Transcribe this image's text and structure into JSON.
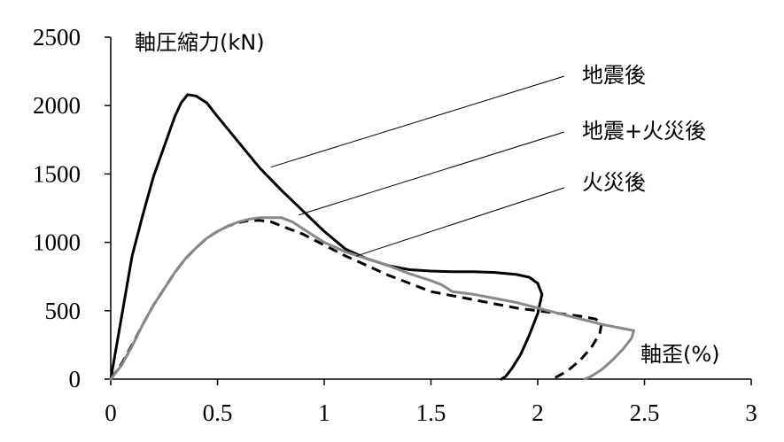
{
  "chart_data": {
    "type": "line",
    "title": "",
    "ylabel": "軸圧縮力(kN)",
    "xlabel": "軸歪(%)",
    "xlim": [
      0,
      3
    ],
    "ylim": [
      0,
      2500
    ],
    "xticks": [
      "0",
      "0.5",
      "1",
      "1.5",
      "2",
      "2.5",
      "3"
    ],
    "yticks": [
      "0",
      "500",
      "1000",
      "1500",
      "2000",
      "2500"
    ],
    "grid": false,
    "legend": "annotation leader lines, upper right",
    "series": [
      {
        "name": "地震後",
        "color": "#000000",
        "style": "solid",
        "points": [
          [
            0,
            0
          ],
          [
            0.05,
            450
          ],
          [
            0.1,
            900
          ],
          [
            0.15,
            1200
          ],
          [
            0.2,
            1480
          ],
          [
            0.25,
            1700
          ],
          [
            0.3,
            1920
          ],
          [
            0.33,
            2020
          ],
          [
            0.36,
            2080
          ],
          [
            0.4,
            2070
          ],
          [
            0.45,
            2020
          ],
          [
            0.5,
            1920
          ],
          [
            0.6,
            1730
          ],
          [
            0.7,
            1540
          ],
          [
            0.8,
            1380
          ],
          [
            0.9,
            1230
          ],
          [
            1.0,
            1080
          ],
          [
            1.1,
            950
          ],
          [
            1.2,
            880
          ],
          [
            1.3,
            830
          ],
          [
            1.4,
            800
          ],
          [
            1.5,
            790
          ],
          [
            1.6,
            785
          ],
          [
            1.7,
            785
          ],
          [
            1.8,
            780
          ],
          [
            1.9,
            765
          ],
          [
            1.96,
            745
          ],
          [
            2.0,
            700
          ],
          [
            2.02,
            620
          ],
          [
            2.0,
            480
          ],
          [
            1.96,
            320
          ],
          [
            1.92,
            180
          ],
          [
            1.88,
            80
          ],
          [
            1.85,
            20
          ],
          [
            1.83,
            0
          ]
        ]
      },
      {
        "name": "地震+火災後",
        "color": "#000000",
        "style": "dashed",
        "points": [
          [
            0,
            0
          ],
          [
            0.05,
            110
          ],
          [
            0.1,
            250
          ],
          [
            0.15,
            400
          ],
          [
            0.2,
            540
          ],
          [
            0.25,
            660
          ],
          [
            0.3,
            780
          ],
          [
            0.35,
            880
          ],
          [
            0.4,
            960
          ],
          [
            0.45,
            1030
          ],
          [
            0.5,
            1080
          ],
          [
            0.55,
            1120
          ],
          [
            0.6,
            1145
          ],
          [
            0.65,
            1160
          ],
          [
            0.7,
            1160
          ],
          [
            0.75,
            1150
          ],
          [
            0.8,
            1120
          ],
          [
            0.9,
            1060
          ],
          [
            1.0,
            980
          ],
          [
            1.1,
            900
          ],
          [
            1.2,
            830
          ],
          [
            1.3,
            760
          ],
          [
            1.4,
            700
          ],
          [
            1.5,
            640
          ],
          [
            1.6,
            610
          ],
          [
            1.7,
            580
          ],
          [
            1.8,
            550
          ],
          [
            1.9,
            520
          ],
          [
            2.0,
            500
          ],
          [
            2.1,
            480
          ],
          [
            2.2,
            460
          ],
          [
            2.27,
            440
          ],
          [
            2.3,
            410
          ],
          [
            2.29,
            330
          ],
          [
            2.25,
            230
          ],
          [
            2.2,
            140
          ],
          [
            2.14,
            60
          ],
          [
            2.07,
            0
          ]
        ]
      },
      {
        "name": "火災後",
        "color": "#888888",
        "style": "solid",
        "points": [
          [
            0,
            0
          ],
          [
            0.05,
            100
          ],
          [
            0.1,
            240
          ],
          [
            0.15,
            400
          ],
          [
            0.2,
            540
          ],
          [
            0.25,
            660
          ],
          [
            0.3,
            780
          ],
          [
            0.35,
            880
          ],
          [
            0.4,
            960
          ],
          [
            0.45,
            1030
          ],
          [
            0.5,
            1080
          ],
          [
            0.55,
            1120
          ],
          [
            0.6,
            1150
          ],
          [
            0.65,
            1170
          ],
          [
            0.7,
            1180
          ],
          [
            0.75,
            1180
          ],
          [
            0.8,
            1180
          ],
          [
            0.85,
            1150
          ],
          [
            0.9,
            1100
          ],
          [
            1.0,
            1000
          ],
          [
            1.1,
            930
          ],
          [
            1.2,
            880
          ],
          [
            1.3,
            830
          ],
          [
            1.4,
            770
          ],
          [
            1.5,
            720
          ],
          [
            1.55,
            690
          ],
          [
            1.6,
            640
          ],
          [
            1.7,
            620
          ],
          [
            1.8,
            590
          ],
          [
            1.9,
            560
          ],
          [
            2.0,
            520
          ],
          [
            2.1,
            480
          ],
          [
            2.2,
            440
          ],
          [
            2.3,
            400
          ],
          [
            2.4,
            370
          ],
          [
            2.45,
            355
          ],
          [
            2.44,
            300
          ],
          [
            2.4,
            220
          ],
          [
            2.35,
            140
          ],
          [
            2.3,
            70
          ],
          [
            2.25,
            20
          ],
          [
            2.22,
            0
          ]
        ]
      }
    ],
    "annotations": [
      {
        "text": "地震後",
        "series": "地震後",
        "anchor_x": 0.75,
        "anchor_y": 1550
      },
      {
        "text": "地震+火災後",
        "series": "地震+火災後",
        "anchor_x": 0.88,
        "anchor_y": 1200
      },
      {
        "text": "火災後",
        "series": "火災後",
        "anchor_x": 1.15,
        "anchor_y": 900
      }
    ]
  }
}
